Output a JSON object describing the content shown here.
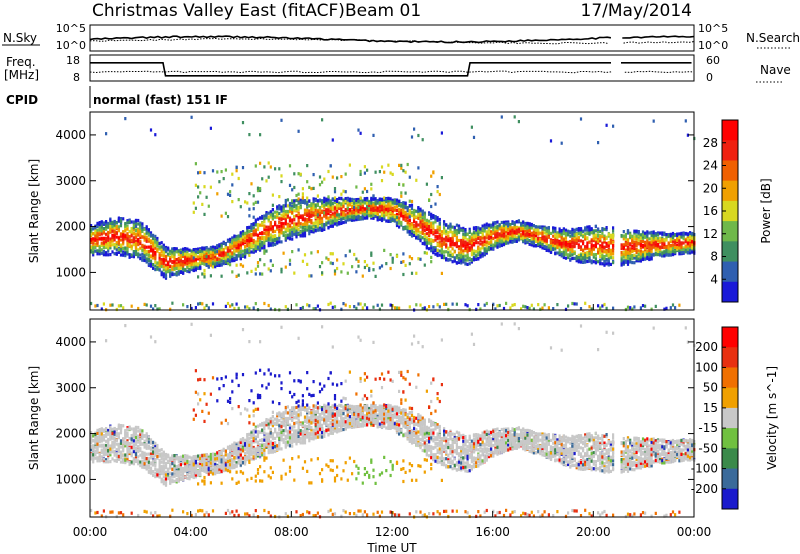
{
  "header": {
    "title": "Christmas Valley East (fitACF)",
    "beam": "Beam 01",
    "date": "17/May/2014"
  },
  "noise_panel": {
    "left_label": "N.Sky",
    "left_ticks": [
      "10^5",
      "10^0"
    ],
    "right_ticks": [
      "10^5",
      "10^0"
    ],
    "right_label": "N.Search"
  },
  "freq_panel": {
    "left_label_1": "Freq.",
    "left_label_2": "[MHz]",
    "left_ticks": [
      "18",
      "8"
    ],
    "right_ticks": [
      "60",
      "0"
    ],
    "right_label": "Nave"
  },
  "cpid": {
    "label": "CPID",
    "text": "normal (fast) 151 IF"
  },
  "colors": {
    "power": [
      "#1a1ad8",
      "#2f5fb0",
      "#3f8f60",
      "#6fb84a",
      "#d8d820",
      "#f0a000",
      "#f06000",
      "#f02010",
      "#ff0000"
    ],
    "velocity": [
      "#1a1acc",
      "#3a6a9a",
      "#3a8a4a",
      "#70c040",
      "#c8c8c8",
      "#f0a000",
      "#f07000",
      "#e83010",
      "#ff0000"
    ]
  },
  "chart_data": [
    {
      "type": "heatmap",
      "name": "power",
      "ylabel": "Slant Range [km]",
      "ylim": [
        180,
        4500
      ],
      "yticks": [
        "4000",
        "3000",
        "2000",
        "1000"
      ],
      "xticks": [
        "00:00",
        "04:00",
        "08:00",
        "12:00",
        "16:00",
        "20:00",
        "00:00"
      ],
      "colorbar_label": "Power [dB]",
      "colorbar_ticks": [
        "28",
        "24",
        "20",
        "16",
        "12",
        "8",
        "4"
      ],
      "main_echo_band_km": [
        {
          "t": 0,
          "km": 1700
        },
        {
          "t": 1,
          "km": 1800
        },
        {
          "t": 2,
          "km": 1700
        },
        {
          "t": 3,
          "km": 1200
        },
        {
          "t": 5,
          "km": 1350
        },
        {
          "t": 6,
          "km": 1600
        },
        {
          "t": 7,
          "km": 1950
        },
        {
          "t": 8,
          "km": 2150
        },
        {
          "t": 9,
          "km": 2250
        },
        {
          "t": 10,
          "km": 2350
        },
        {
          "t": 11,
          "km": 2400
        },
        {
          "t": 12,
          "km": 2350
        },
        {
          "t": 13,
          "km": 2050
        },
        {
          "t": 14,
          "km": 1700
        },
        {
          "t": 15,
          "km": 1550
        },
        {
          "t": 16,
          "km": 1800
        },
        {
          "t": 17,
          "km": 1900
        },
        {
          "t": 18,
          "km": 1750
        },
        {
          "t": 19,
          "km": 1600
        },
        {
          "t": 20,
          "km": 1600
        },
        {
          "t": 21,
          "km": 1550
        },
        {
          "t": 22,
          "km": 1580
        },
        {
          "t": 24,
          "km": 1650
        }
      ]
    },
    {
      "type": "heatmap",
      "name": "velocity",
      "ylabel": "Slant Range [km]",
      "xlabel": "Time UT",
      "ylim": [
        180,
        4500
      ],
      "yticks": [
        "4000",
        "3000",
        "2000",
        "1000"
      ],
      "xticks": [
        "00:00",
        "04:00",
        "08:00",
        "12:00",
        "16:00",
        "20:00",
        "00:00"
      ],
      "colorbar_label": "Velocity [m s^-1]",
      "colorbar_ticks": [
        "200",
        "100",
        "50",
        "15",
        "-15",
        "-50",
        "-100",
        "-200"
      ]
    }
  ]
}
